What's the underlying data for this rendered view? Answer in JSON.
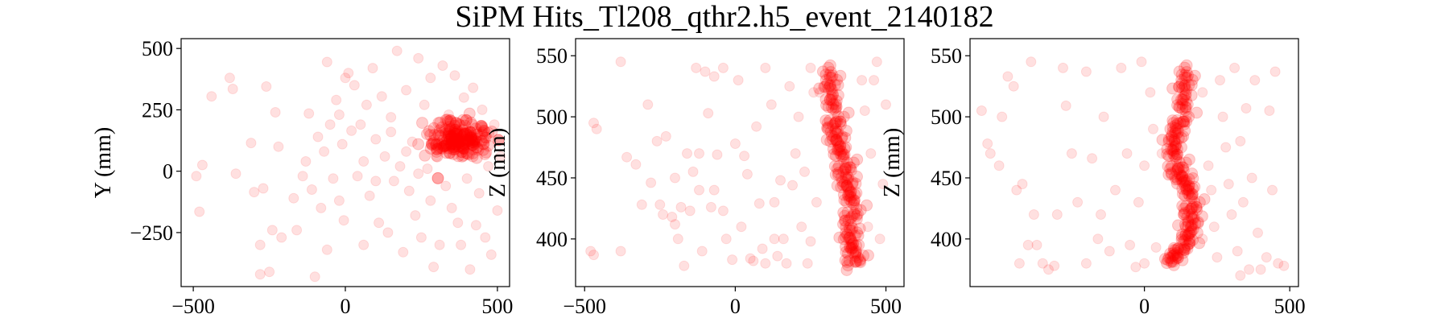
{
  "figure": {
    "title": "SiPM Hits_Tl208_qthr2.h5_event_2140182",
    "marker_color": "#ff0000",
    "marker_alpha": 0.12
  },
  "chart_data": [
    {
      "type": "scatter",
      "xlabel": "",
      "ylabel": "Y (mm)",
      "xlim": [
        -540,
        540
      ],
      "ylim": [
        -470,
        540
      ],
      "xticks": [
        -500,
        0,
        500
      ],
      "yticks": [
        -250,
        0,
        250,
        500
      ],
      "xtick_labels": [
        "−500",
        "0",
        "500"
      ],
      "ytick_labels": [
        "−250",
        "0",
        "250",
        "500"
      ],
      "grid": false,
      "cluster": {
        "center": [
          370,
          130
        ],
        "spread": [
          50,
          40
        ],
        "count": 220
      },
      "track": [],
      "background_points": [
        [
          -490,
          -20
        ],
        [
          -470,
          25
        ],
        [
          -480,
          -165
        ],
        [
          -440,
          305
        ],
        [
          -380,
          380
        ],
        [
          -370,
          335
        ],
        [
          -360,
          -10
        ],
        [
          -310,
          115
        ],
        [
          -300,
          -85
        ],
        [
          -280,
          -300
        ],
        [
          -280,
          -420
        ],
        [
          -270,
          -70
        ],
        [
          -260,
          345
        ],
        [
          -250,
          -410
        ],
        [
          -240,
          -240
        ],
        [
          -230,
          240
        ],
        [
          -220,
          100
        ],
        [
          -210,
          -270
        ],
        [
          -170,
          -110
        ],
        [
          -160,
          -240
        ],
        [
          -140,
          -20
        ],
        [
          -130,
          40
        ],
        [
          -120,
          235
        ],
        [
          -110,
          -75
        ],
        [
          -100,
          -430
        ],
        [
          -90,
          140
        ],
        [
          -80,
          -150
        ],
        [
          -70,
          80
        ],
        [
          -60,
          445
        ],
        [
          -50,
          190
        ],
        [
          -40,
          -30
        ],
        [
          -30,
          290
        ],
        [
          -20,
          230
        ],
        [
          -10,
          110
        ],
        [
          -5,
          -200
        ],
        [
          0,
          380
        ],
        [
          10,
          400
        ],
        [
          20,
          165
        ],
        [
          30,
          350
        ],
        [
          40,
          -20
        ],
        [
          50,
          190
        ],
        [
          60,
          40
        ],
        [
          70,
          270
        ],
        [
          80,
          -100
        ],
        [
          90,
          420
        ],
        [
          100,
          130
        ],
        [
          110,
          -210
        ],
        [
          120,
          305
        ],
        [
          130,
          60
        ],
        [
          140,
          -250
        ],
        [
          150,
          220
        ],
        [
          160,
          -40
        ],
        [
          170,
          490
        ],
        [
          180,
          20
        ],
        [
          190,
          -330
        ],
        [
          200,
          330
        ],
        [
          210,
          -80
        ],
        [
          220,
          120
        ],
        [
          230,
          -180
        ],
        [
          240,
          460
        ],
        [
          250,
          -270
        ],
        [
          260,
          270
        ],
        [
          270,
          10
        ],
        [
          280,
          -120
        ],
        [
          290,
          -390
        ],
        [
          300,
          60
        ],
        [
          310,
          -300
        ],
        [
          320,
          430
        ],
        [
          330,
          -60
        ],
        [
          340,
          230
        ],
        [
          350,
          -150
        ],
        [
          360,
          390
        ],
        [
          370,
          -210
        ],
        [
          380,
          -300
        ],
        [
          390,
          300
        ],
        [
          400,
          -30
        ],
        [
          410,
          -400
        ],
        [
          420,
          340
        ],
        [
          430,
          -220
        ],
        [
          440,
          -90
        ],
        [
          450,
          250
        ],
        [
          460,
          -270
        ],
        [
          470,
          20
        ],
        [
          480,
          -340
        ],
        [
          490,
          190
        ],
        [
          500,
          -160
        ],
        [
          510,
          60
        ],
        [
          -60,
          -320
        ],
        [
          240,
          -10
        ],
        [
          200,
          80
        ],
        [
          150,
          160
        ],
        [
          60,
          -300
        ],
        [
          -20,
          -120
        ],
        [
          100,
          -40
        ],
        [
          280,
          380
        ]
      ]
    },
    {
      "type": "scatter",
      "xlabel": "",
      "ylabel": "Z (mm)",
      "xlim": [
        -530,
        560
      ],
      "ylim": [
        361,
        564
      ],
      "xticks": [
        -500,
        0,
        500
      ],
      "yticks": [
        400,
        450,
        500,
        550
      ],
      "xtick_labels": [
        "−500",
        "0",
        "500"
      ],
      "ytick_labels": [
        "400",
        "450",
        "500",
        "550"
      ],
      "grid": false,
      "cluster": null,
      "track": [
        [
          320,
          540
        ],
        [
          320,
          520
        ],
        [
          330,
          500
        ],
        [
          340,
          485
        ],
        [
          350,
          470
        ],
        [
          370,
          455
        ],
        [
          380,
          440
        ],
        [
          390,
          425
        ],
        [
          385,
          405
        ],
        [
          390,
          390
        ],
        [
          400,
          380
        ]
      ],
      "background_points": [
        [
          -470,
          495
        ],
        [
          -460,
          490
        ],
        [
          -480,
          390
        ],
        [
          -470,
          387
        ],
        [
          -380,
          545
        ],
        [
          -360,
          467
        ],
        [
          -380,
          390
        ],
        [
          -330,
          461
        ],
        [
          -310,
          428
        ],
        [
          -290,
          510
        ],
        [
          -280,
          446
        ],
        [
          -260,
          480
        ],
        [
          -250,
          428
        ],
        [
          -240,
          420
        ],
        [
          -230,
          484
        ],
        [
          -210,
          418
        ],
        [
          -200,
          412
        ],
        [
          -190,
          400
        ],
        [
          -180,
          426
        ],
        [
          -170,
          378
        ],
        [
          -160,
          470
        ],
        [
          -150,
          423
        ],
        [
          -140,
          455
        ],
        [
          -130,
          540
        ],
        [
          -120,
          440
        ],
        [
          -110,
          390
        ],
        [
          -100,
          537
        ],
        [
          -90,
          503
        ],
        [
          -80,
          426
        ],
        [
          -70,
          533
        ],
        [
          -60,
          469
        ],
        [
          -40,
          423
        ],
        [
          -30,
          400
        ],
        [
          -10,
          383
        ],
        [
          0,
          478
        ],
        [
          10,
          530
        ],
        [
          20,
          410
        ],
        [
          30,
          468
        ],
        [
          40,
          453
        ],
        [
          50,
          384
        ],
        [
          60,
          382
        ],
        [
          70,
          492
        ],
        [
          80,
          429
        ],
        [
          90,
          392
        ],
        [
          100,
          380
        ],
        [
          120,
          510
        ],
        [
          130,
          430
        ],
        [
          140,
          386
        ],
        [
          150,
          448
        ],
        [
          160,
          400
        ],
        [
          170,
          380
        ],
        [
          180,
          525
        ],
        [
          190,
          444
        ],
        [
          200,
          470
        ],
        [
          210,
          500
        ],
        [
          220,
          410
        ],
        [
          230,
          455
        ],
        [
          240,
          380
        ],
        [
          250,
          398
        ],
        [
          260,
          520
        ],
        [
          270,
          430
        ],
        [
          280,
          520
        ],
        [
          420,
          530
        ],
        [
          430,
          505
        ],
        [
          440,
          410
        ],
        [
          450,
          470
        ],
        [
          460,
          530
        ],
        [
          470,
          545
        ],
        [
          480,
          400
        ],
        [
          490,
          445
        ],
        [
          500,
          510
        ],
        [
          -40,
          540
        ],
        [
          100,
          540
        ],
        [
          250,
          540
        ],
        [
          -120,
          470
        ],
        [
          -200,
          450
        ],
        [
          -70,
          440
        ],
        [
          130,
          400
        ]
      ]
    },
    {
      "type": "scatter",
      "xlabel": "",
      "ylabel": "Z (mm)",
      "xlim": [
        -600,
        530
      ],
      "ylim": [
        361,
        564
      ],
      "xticks": [
        0,
        500
      ],
      "yticks": [
        400,
        450,
        500,
        550
      ],
      "xtick_labels": [
        "0",
        "500"
      ],
      "ytick_labels": [
        "400",
        "450",
        "500",
        "550"
      ],
      "grid": false,
      "cluster": null,
      "track": [
        [
          150,
          540
        ],
        [
          140,
          520
        ],
        [
          130,
          500
        ],
        [
          110,
          485
        ],
        [
          100,
          470
        ],
        [
          120,
          455
        ],
        [
          150,
          445
        ],
        [
          160,
          430
        ],
        [
          170,
          415
        ],
        [
          150,
          400
        ],
        [
          120,
          390
        ],
        [
          90,
          380
        ]
      ],
      "background_points": [
        [
          -560,
          505
        ],
        [
          -540,
          478
        ],
        [
          -530,
          470
        ],
        [
          -500,
          460
        ],
        [
          -490,
          500
        ],
        [
          -470,
          533
        ],
        [
          -450,
          525
        ],
        [
          -440,
          440
        ],
        [
          -420,
          445
        ],
        [
          -400,
          395
        ],
        [
          -390,
          545
        ],
        [
          -380,
          420
        ],
        [
          -370,
          395
        ],
        [
          -350,
          380
        ],
        [
          -330,
          375
        ],
        [
          -310,
          378
        ],
        [
          -300,
          420
        ],
        [
          -280,
          540
        ],
        [
          -270,
          509
        ],
        [
          -250,
          470
        ],
        [
          -230,
          430
        ],
        [
          -200,
          537
        ],
        [
          -180,
          466
        ],
        [
          -160,
          400
        ],
        [
          -150,
          420
        ],
        [
          -140,
          500
        ],
        [
          -120,
          390
        ],
        [
          -100,
          440
        ],
        [
          -80,
          540
        ],
        [
          -60,
          470
        ],
        [
          -50,
          395
        ],
        [
          -30,
          377
        ],
        [
          -20,
          430
        ],
        [
          -10,
          545
        ],
        [
          0,
          380
        ],
        [
          20,
          520
        ],
        [
          30,
          490
        ],
        [
          40,
          393
        ],
        [
          60,
          470
        ],
        [
          200,
          520
        ],
        [
          220,
          460
        ],
        [
          230,
          440
        ],
        [
          240,
          410
        ],
        [
          250,
          385
        ],
        [
          260,
          530
        ],
        [
          270,
          500
        ],
        [
          280,
          475
        ],
        [
          290,
          445
        ],
        [
          300,
          420
        ],
        [
          310,
          540
        ],
        [
          320,
          390
        ],
        [
          330,
          480
        ],
        [
          340,
          430
        ],
        [
          350,
          507
        ],
        [
          360,
          375
        ],
        [
          370,
          450
        ],
        [
          380,
          530
        ],
        [
          390,
          405
        ],
        [
          400,
          375
        ],
        [
          420,
          385
        ],
        [
          430,
          505
        ],
        [
          440,
          440
        ],
        [
          450,
          537
        ],
        [
          460,
          380
        ],
        [
          480,
          378
        ],
        [
          -430,
          380
        ],
        [
          -200,
          380
        ],
        [
          0,
          460
        ],
        [
          200,
          400
        ],
        [
          330,
          370
        ]
      ]
    }
  ]
}
